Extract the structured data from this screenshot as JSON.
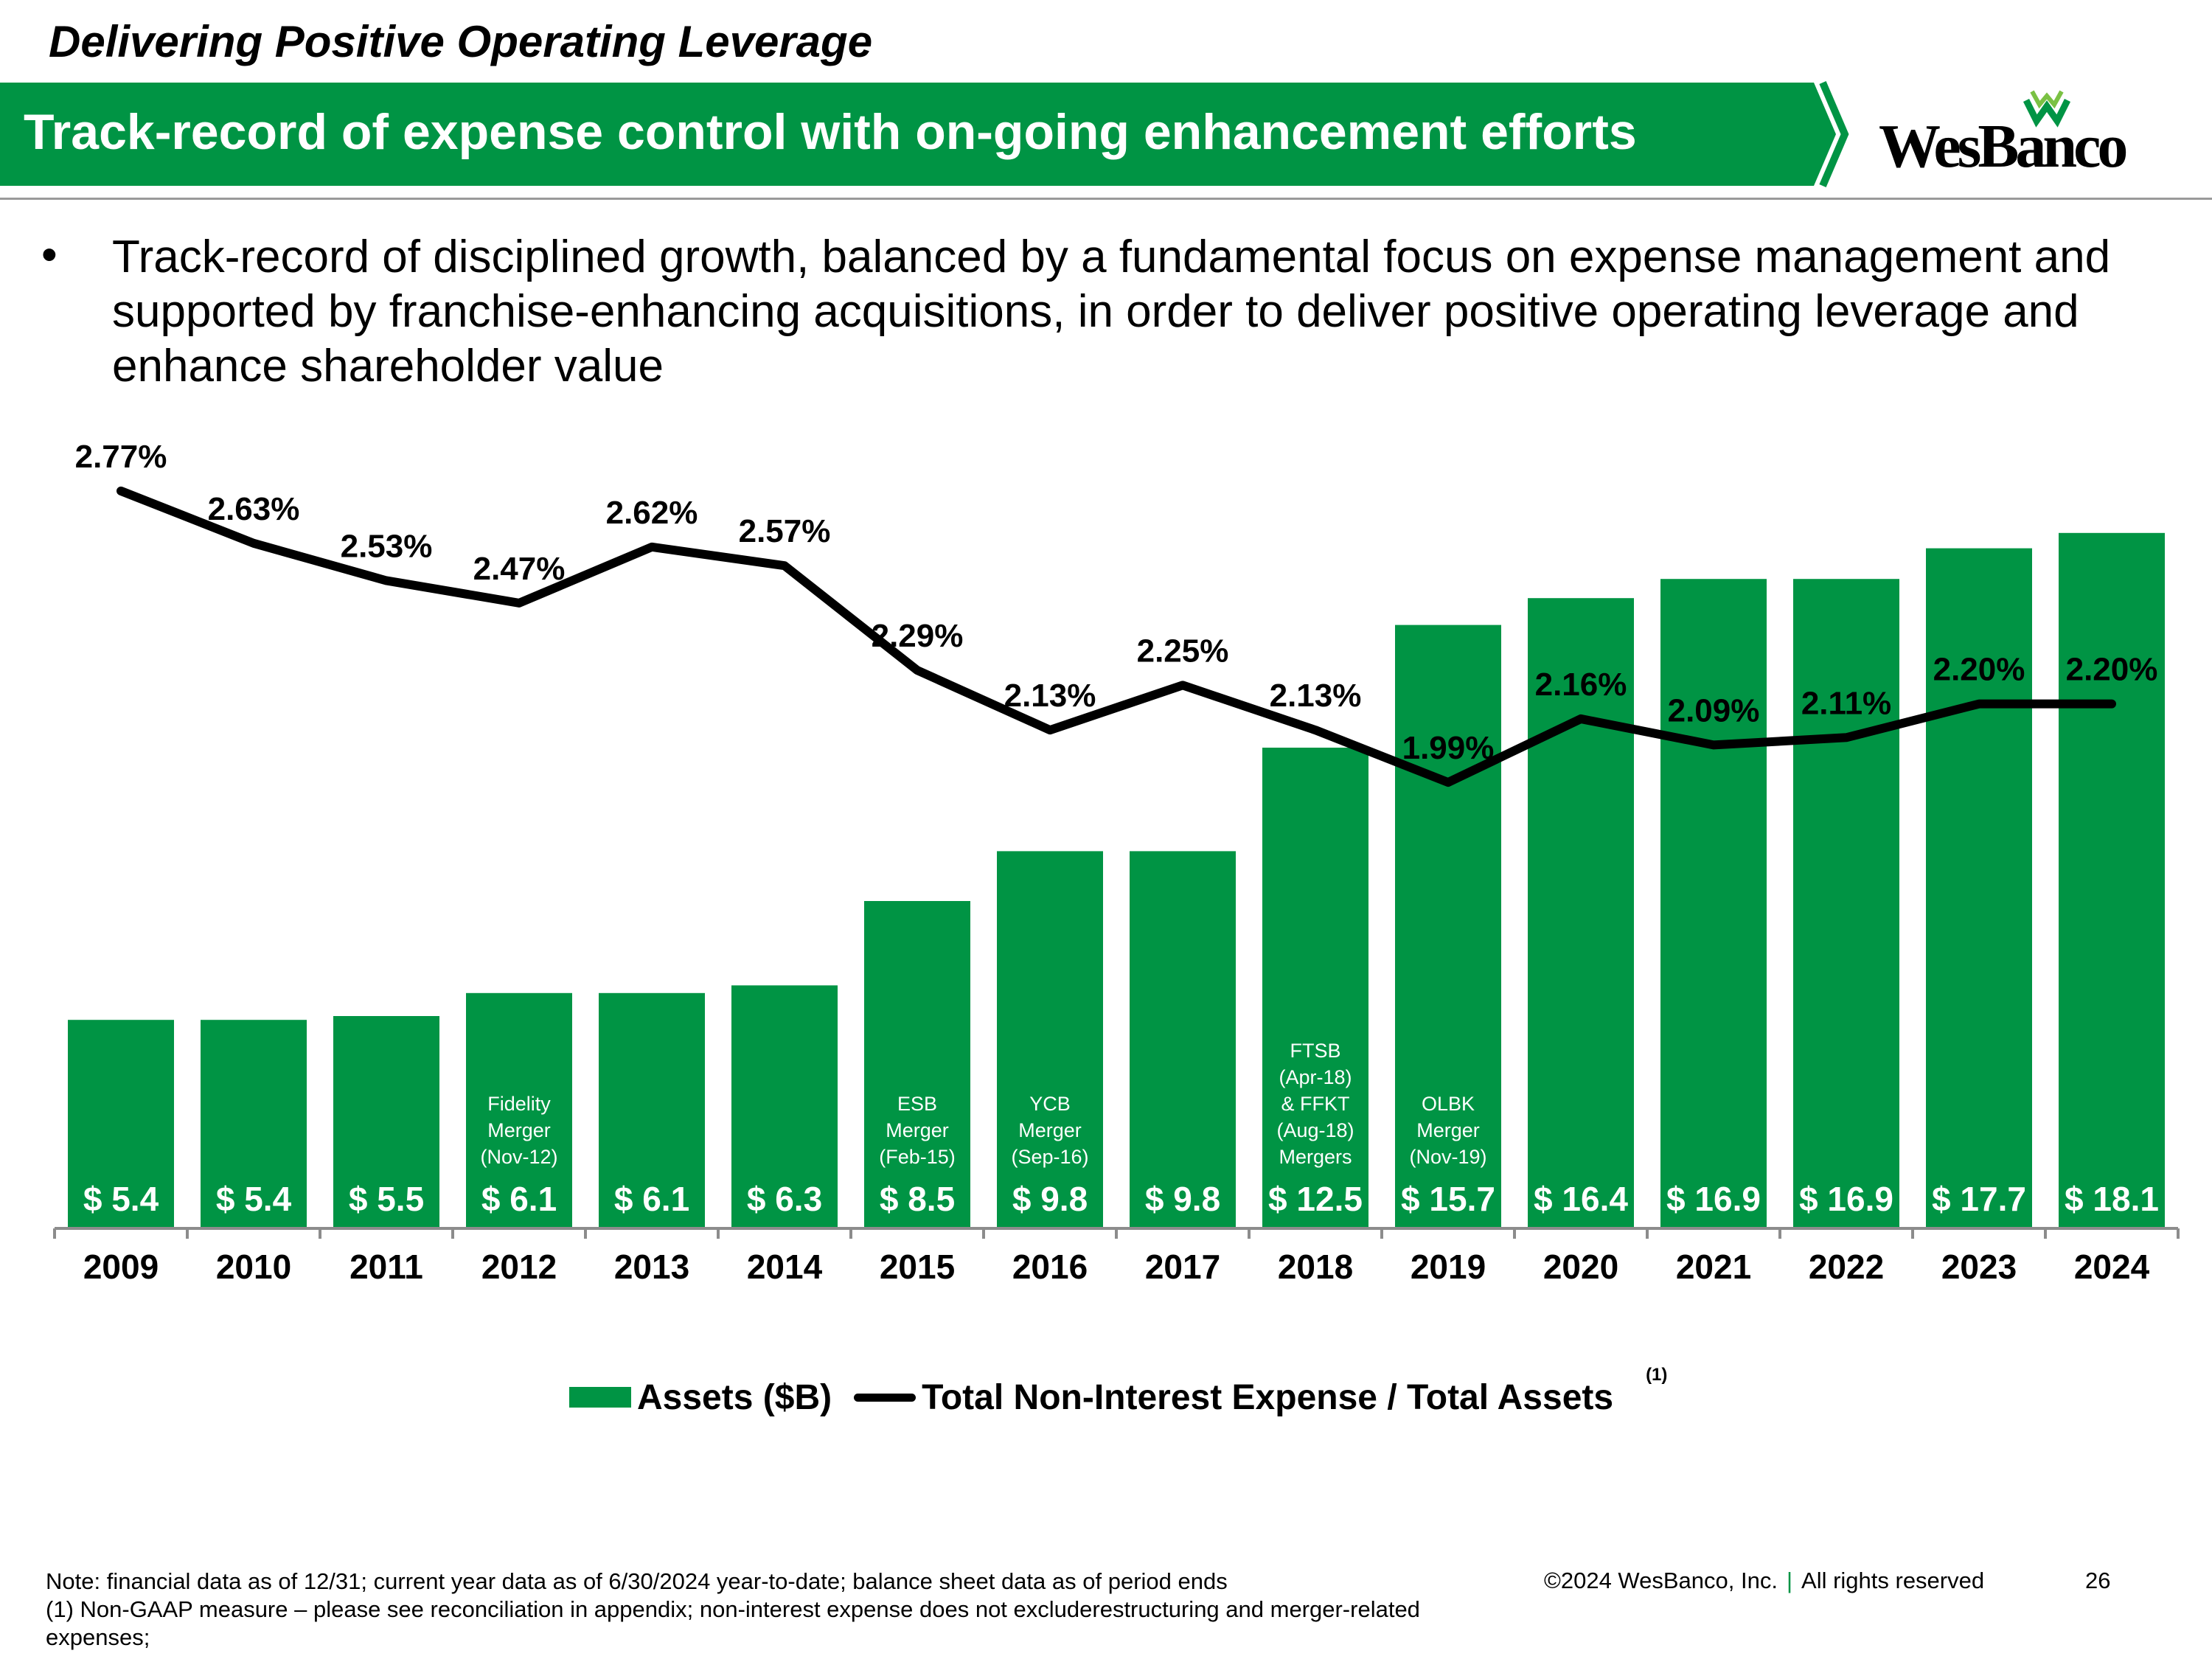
{
  "header": {
    "kicker": "Delivering Positive Operating Leverage",
    "title": "Track-record of expense control with on-going enhancement efforts",
    "logo_text": "WesBanco",
    "brand_color": "#009444"
  },
  "bullet": {
    "marker": "•",
    "text": "Track-record of disciplined growth, balanced by a fundamental focus on expense management and supported by franchise-enhancing acquisitions, in order to deliver positive operating leverage and enhance shareholder value"
  },
  "chart_data": {
    "type": "bar",
    "categories": [
      "2009",
      "2010",
      "2011",
      "2012",
      "2013",
      "2014",
      "2015",
      "2016",
      "2017",
      "2018",
      "2019",
      "2020",
      "2021",
      "2022",
      "2023",
      "2024"
    ],
    "series": [
      {
        "name": "Assets ($B)",
        "type": "bar",
        "color": "#009444",
        "values": [
          5.4,
          5.4,
          5.5,
          6.1,
          6.1,
          6.3,
          8.5,
          9.8,
          9.8,
          12.5,
          15.7,
          16.4,
          16.9,
          16.9,
          17.7,
          18.1
        ],
        "labels": [
          "$ 5.4",
          "$ 5.4",
          "$ 5.5",
          "$ 6.1",
          "$ 6.1",
          "$ 6.3",
          "$ 8.5",
          "$ 9.8",
          "$ 9.8",
          "$ 12.5",
          "$ 15.7",
          "$ 16.4",
          "$ 16.9",
          "$ 16.9",
          "$ 17.7",
          "$ 18.1"
        ]
      },
      {
        "name": "Total Non-Interest Expense / Total Assets",
        "type": "line",
        "color": "#000000",
        "values": [
          2.77,
          2.63,
          2.53,
          2.47,
          2.62,
          2.57,
          2.29,
          2.13,
          2.25,
          2.13,
          1.99,
          2.16,
          2.09,
          2.11,
          2.2,
          2.2
        ],
        "labels": [
          "2.77%",
          "2.63%",
          "2.53%",
          "2.47%",
          "2.62%",
          "2.57%",
          "2.29%",
          "2.13%",
          "2.25%",
          "2.13%",
          "1.99%",
          "2.16%",
          "2.09%",
          "2.11%",
          "2.20%",
          "2.20%"
        ]
      }
    ],
    "annotations": [
      {
        "category": "2012",
        "lines": [
          "Fidelity",
          "Merger",
          "(Nov-12)"
        ]
      },
      {
        "category": "2015",
        "lines": [
          "ESB",
          "Merger",
          "(Feb-15)"
        ]
      },
      {
        "category": "2016",
        "lines": [
          "YCB",
          "Merger",
          "(Sep-16)"
        ]
      },
      {
        "category": "2018",
        "lines": [
          "FTSB",
          "(Apr-18)",
          "& FFKT",
          "(Aug-18)",
          "Mergers"
        ]
      },
      {
        "category": "2019",
        "lines": [
          "OLBK",
          "Merger",
          "(Nov-19)"
        ]
      }
    ],
    "ylim_bars": [
      0,
      20
    ],
    "ylim_line": [
      0.8,
      2.9
    ],
    "legend_position": "bottom",
    "legend_footnote": "(1)",
    "grid": false
  },
  "footer": {
    "note_lines": [
      "Note: financial data as of 12/31; current year data as of 6/30/2024 year-to-date; balance sheet data as of period ends",
      "(1) Non-GAAP measure – please see reconciliation in appendix; non-interest expense does not excluderestructuring and merger-related expenses;"
    ],
    "copyright": "©2024 WesBanco, Inc.",
    "separator": "|",
    "rights": "All rights reserved",
    "page_number": "26"
  }
}
